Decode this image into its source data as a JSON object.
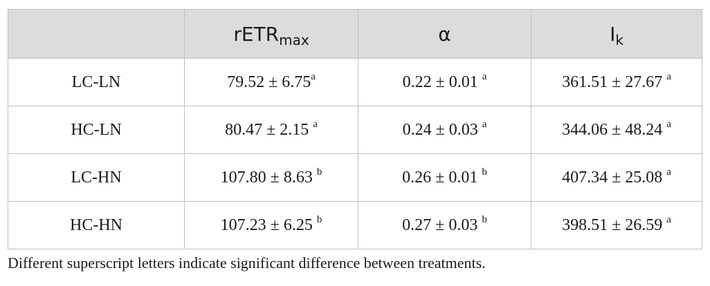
{
  "table": {
    "headers": [
      {
        "main": "",
        "sub": ""
      },
      {
        "main": "rETR",
        "sub": "max"
      },
      {
        "main": "α",
        "sub": ""
      },
      {
        "main": "I",
        "sub": "k"
      }
    ],
    "rows": [
      {
        "label": "LC-LN",
        "cells": [
          {
            "value": "79.52 ± 6.75",
            "sup": "a"
          },
          {
            "value": "0.22 ± 0.01 ",
            "sup": "a"
          },
          {
            "value": "361.51 ± 27.67 ",
            "sup": "a"
          }
        ]
      },
      {
        "label": "HC-LN",
        "cells": [
          {
            "value": "80.47 ± 2.15 ",
            "sup": "a"
          },
          {
            "value": "0.24 ± 0.03 ",
            "sup": "a"
          },
          {
            "value": "344.06 ± 48.24 ",
            "sup": "a"
          }
        ]
      },
      {
        "label": "LC-HN",
        "cells": [
          {
            "value": "107.80 ± 8.63 ",
            "sup": "b"
          },
          {
            "value": "0.26 ± 0.01 ",
            "sup": "b"
          },
          {
            "value": "407.34 ± 25.08 ",
            "sup": "a"
          }
        ]
      },
      {
        "label": "HC-HN",
        "cells": [
          {
            "value": "107.23 ± 6.25 ",
            "sup": "b"
          },
          {
            "value": "0.27 ± 0.03 ",
            "sup": "b"
          },
          {
            "value": "398.51 ± 26.59 ",
            "sup": "a"
          }
        ]
      }
    ]
  },
  "footnote": "Different superscript letters indicate significant difference between treatments."
}
